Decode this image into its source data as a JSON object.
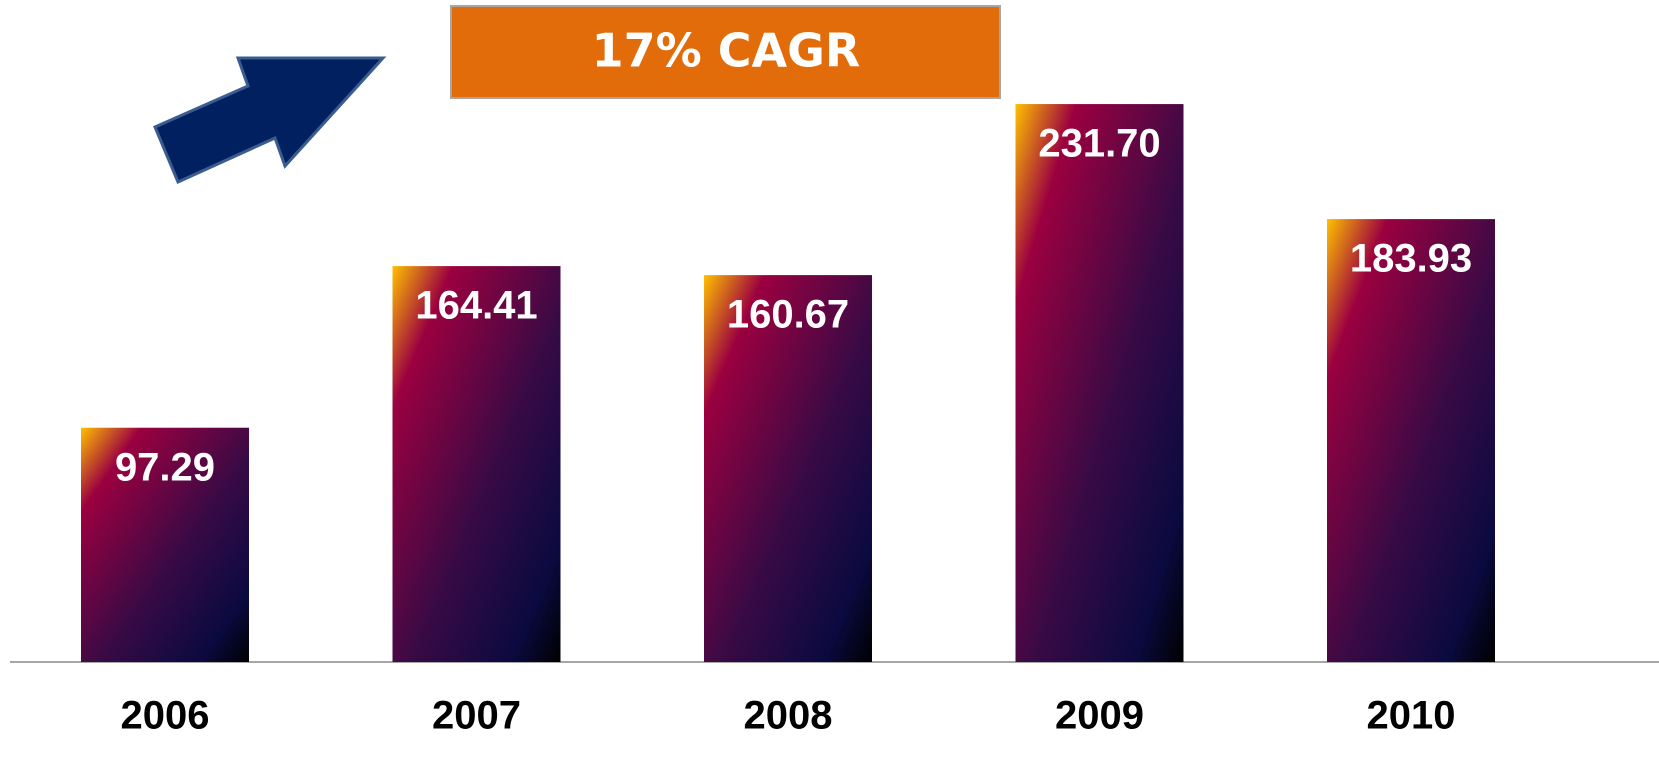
{
  "chart_data": {
    "type": "bar",
    "annotation": "17% CAGR",
    "categories": [
      "2006",
      "2007",
      "2008",
      "2009",
      "2010"
    ],
    "values": [
      97.29,
      164.41,
      160.67,
      231.7,
      183.93
    ],
    "value_labels": [
      "97.29",
      "164.41",
      "160.67",
      "231.70",
      "183.93"
    ]
  }
}
